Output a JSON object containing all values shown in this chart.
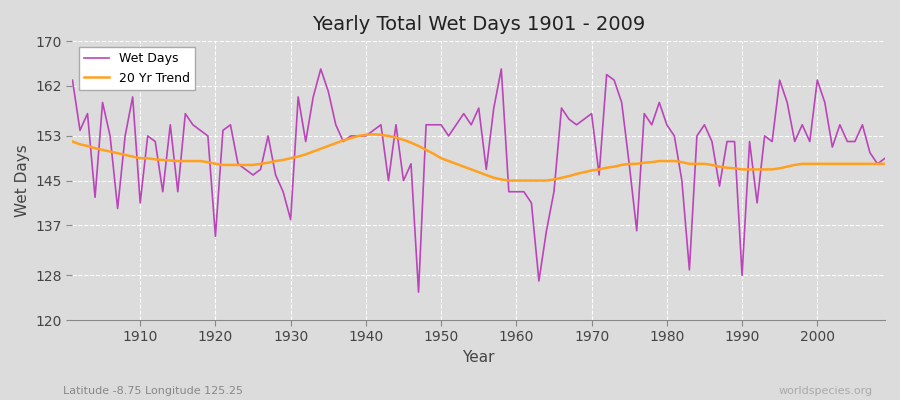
{
  "title": "Yearly Total Wet Days 1901 - 2009",
  "xlabel": "Year",
  "ylabel": "Wet Days",
  "subtitle_left": "Latitude -8.75 Longitude 125.25",
  "subtitle_right": "worldspecies.org",
  "ylim": [
    120,
    170
  ],
  "yticks": [
    120,
    128,
    137,
    145,
    153,
    162,
    170
  ],
  "xlim": [
    1901,
    2009
  ],
  "bg_color": "#dcdcdc",
  "grid_color": "#ffffff",
  "line_color": "#bb44bb",
  "trend_color": "#ffa020",
  "years": [
    1901,
    1902,
    1903,
    1904,
    1905,
    1906,
    1907,
    1908,
    1909,
    1910,
    1911,
    1912,
    1913,
    1914,
    1915,
    1916,
    1917,
    1918,
    1919,
    1920,
    1921,
    1922,
    1923,
    1924,
    1925,
    1926,
    1927,
    1928,
    1929,
    1930,
    1931,
    1932,
    1933,
    1934,
    1935,
    1936,
    1937,
    1938,
    1939,
    1940,
    1941,
    1942,
    1943,
    1944,
    1945,
    1946,
    1947,
    1948,
    1949,
    1950,
    1951,
    1952,
    1953,
    1954,
    1955,
    1956,
    1957,
    1958,
    1959,
    1960,
    1961,
    1962,
    1963,
    1964,
    1965,
    1966,
    1967,
    1968,
    1969,
    1970,
    1971,
    1972,
    1973,
    1974,
    1975,
    1976,
    1977,
    1978,
    1979,
    1980,
    1981,
    1982,
    1983,
    1984,
    1985,
    1986,
    1987,
    1988,
    1989,
    1990,
    1991,
    1992,
    1993,
    1994,
    1995,
    1996,
    1997,
    1998,
    1999,
    2000,
    2001,
    2002,
    2003,
    2004,
    2005,
    2006,
    2007,
    2008,
    2009
  ],
  "wet_days": [
    163,
    154,
    157,
    142,
    159,
    153,
    140,
    153,
    160,
    141,
    153,
    152,
    143,
    155,
    143,
    157,
    155,
    154,
    153,
    135,
    154,
    155,
    148,
    147,
    146,
    147,
    153,
    146,
    143,
    138,
    160,
    152,
    160,
    165,
    161,
    155,
    152,
    153,
    153,
    153,
    154,
    155,
    145,
    155,
    145,
    148,
    125,
    155,
    155,
    155,
    153,
    155,
    157,
    155,
    158,
    147,
    158,
    165,
    143,
    143,
    143,
    141,
    127,
    136,
    143,
    158,
    156,
    155,
    156,
    157,
    146,
    164,
    163,
    159,
    148,
    136,
    157,
    155,
    159,
    155,
    153,
    145,
    129,
    153,
    155,
    152,
    144,
    152,
    152,
    128,
    152,
    141,
    153,
    152,
    163,
    159,
    152,
    155,
    152,
    163,
    159,
    151,
    155,
    152,
    152,
    155,
    150,
    148,
    149
  ],
  "trend": [
    152.0,
    151.5,
    151.2,
    150.8,
    150.5,
    150.2,
    149.9,
    149.6,
    149.3,
    149.0,
    149.0,
    148.8,
    148.7,
    148.6,
    148.5,
    148.5,
    148.5,
    148.5,
    148.3,
    148.0,
    147.8,
    147.8,
    147.8,
    147.8,
    147.8,
    148.0,
    148.2,
    148.5,
    148.7,
    149.0,
    149.3,
    149.7,
    150.2,
    150.7,
    151.2,
    151.7,
    152.2,
    152.6,
    153.0,
    153.2,
    153.3,
    153.2,
    153.0,
    152.7,
    152.3,
    151.8,
    151.2,
    150.5,
    149.8,
    149.0,
    148.5,
    148.0,
    147.5,
    147.0,
    146.5,
    146.0,
    145.5,
    145.2,
    145.0,
    145.0,
    145.0,
    145.0,
    145.0,
    145.0,
    145.2,
    145.5,
    145.8,
    146.2,
    146.5,
    146.8,
    147.0,
    147.3,
    147.5,
    147.8,
    148.0,
    148.0,
    148.2,
    148.3,
    148.5,
    148.5,
    148.5,
    148.3,
    148.0,
    148.0,
    148.0,
    147.8,
    147.5,
    147.3,
    147.2,
    147.0,
    147.0,
    147.0,
    147.0,
    147.0,
    147.2,
    147.5,
    147.8,
    148.0,
    148.0,
    148.0,
    148.0,
    148.0,
    148.0,
    148.0,
    148.0,
    148.0,
    148.0,
    148.0,
    148.0
  ]
}
